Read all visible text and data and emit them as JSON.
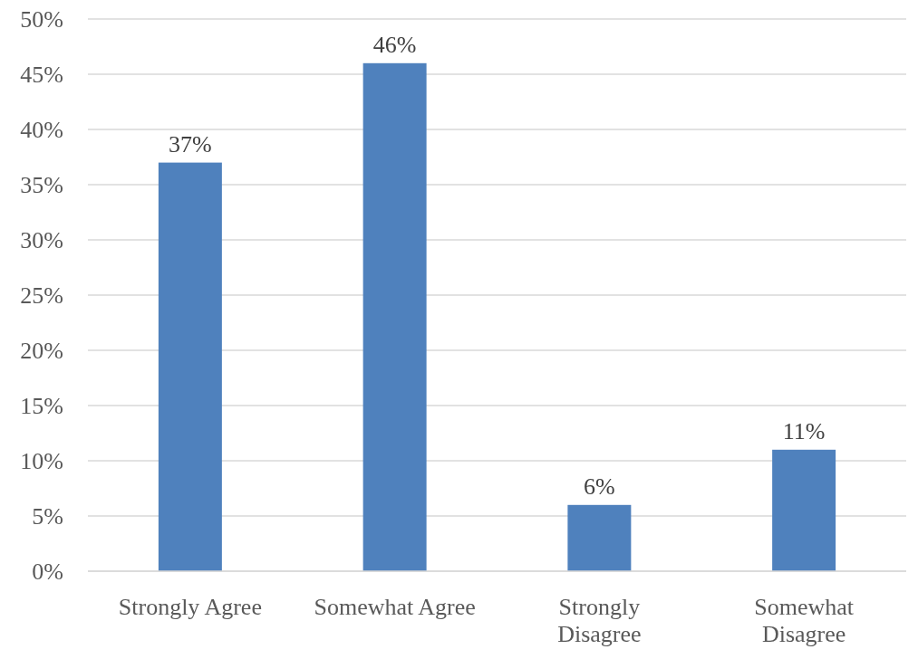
{
  "chart_data": {
    "type": "bar",
    "categories": [
      "Strongly Agree",
      "Somewhat Agree",
      "Strongly Disagree",
      "Somewhat Disagree"
    ],
    "values": [
      37,
      46,
      6,
      11
    ],
    "value_labels": [
      "37%",
      "46%",
      "6%",
      "11%"
    ],
    "color": "#4f81bd",
    "ylim": [
      0,
      50
    ],
    "yticks": [
      {
        "value": 0,
        "label": "0%"
      },
      {
        "value": 5,
        "label": "5%"
      },
      {
        "value": 10,
        "label": "10%"
      },
      {
        "value": 15,
        "label": "15%"
      },
      {
        "value": 20,
        "label": "20%"
      },
      {
        "value": 25,
        "label": "25%"
      },
      {
        "value": 30,
        "label": "30%"
      },
      {
        "value": 35,
        "label": "35%"
      },
      {
        "value": 40,
        "label": "40%"
      },
      {
        "value": 45,
        "label": "45%"
      },
      {
        "value": 50,
        "label": "50%"
      }
    ],
    "grid": "y"
  }
}
